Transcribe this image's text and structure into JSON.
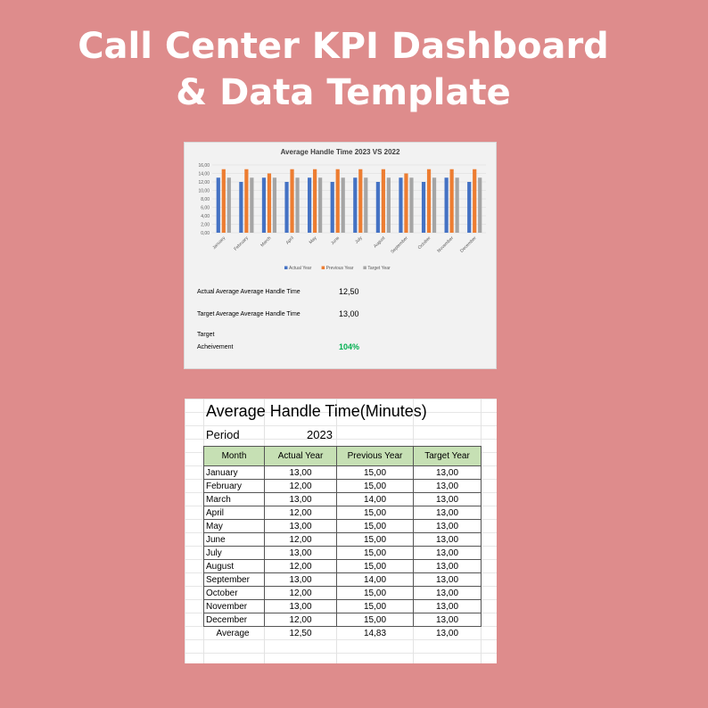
{
  "headline": {
    "line1": "Call Center KPI Dashboard",
    "line2": "& Data Template"
  },
  "chart_data": {
    "type": "bar",
    "title": "Average Handle Time 2023 VS 2022",
    "categories": [
      "January",
      "February",
      "March",
      "April",
      "May",
      "June",
      "July",
      "August",
      "September",
      "October",
      "November",
      "December"
    ],
    "series": [
      {
        "name": "Actual Year",
        "color": "#4472c4",
        "values": [
          13,
          12,
          13,
          12,
          13,
          12,
          13,
          12,
          13,
          12,
          13,
          12
        ]
      },
      {
        "name": "Previous Year",
        "color": "#ed7d31",
        "values": [
          15,
          15,
          14,
          15,
          15,
          15,
          15,
          15,
          14,
          15,
          15,
          15
        ]
      },
      {
        "name": "Target Year",
        "color": "#a5a5a5",
        "values": [
          13,
          13,
          13,
          13,
          13,
          13,
          13,
          13,
          13,
          13,
          13,
          13
        ]
      }
    ],
    "yticks": [
      "0,00",
      "2,00",
      "4,00",
      "6,00",
      "8,00",
      "10,00",
      "12,00",
      "14,00",
      "16,00"
    ],
    "ylim": [
      0,
      16
    ],
    "legend": "bottom"
  },
  "kpi": {
    "actual_label": "Actual Average Average Handle Time",
    "actual_value": "12,50",
    "target_label": "Target Average Average Handle Time",
    "target_value": "13,00",
    "achievement_label_1": "Target",
    "achievement_label_2": "Acheivement",
    "achievement_value": "104%",
    "achievement_color": "#00b050"
  },
  "sheet": {
    "title": "Average Handle Time(Minutes)",
    "period_label": "Period",
    "period_value": "2023",
    "header_color": "#c6e0b4",
    "columns": [
      "Month",
      "Actual Year",
      "Previous Year",
      "Target Year"
    ],
    "rows": [
      [
        "January",
        "13,00",
        "15,00",
        "13,00"
      ],
      [
        "February",
        "12,00",
        "15,00",
        "13,00"
      ],
      [
        "March",
        "13,00",
        "14,00",
        "13,00"
      ],
      [
        "April",
        "12,00",
        "15,00",
        "13,00"
      ],
      [
        "May",
        "13,00",
        "15,00",
        "13,00"
      ],
      [
        "June",
        "12,00",
        "15,00",
        "13,00"
      ],
      [
        "July",
        "13,00",
        "15,00",
        "13,00"
      ],
      [
        "August",
        "12,00",
        "15,00",
        "13,00"
      ],
      [
        "September",
        "13,00",
        "14,00",
        "13,00"
      ],
      [
        "October",
        "12,00",
        "15,00",
        "13,00"
      ],
      [
        "November",
        "13,00",
        "15,00",
        "13,00"
      ],
      [
        "December",
        "12,00",
        "15,00",
        "13,00"
      ]
    ],
    "average": [
      "Average",
      "12,50",
      "14,83",
      "13,00"
    ]
  }
}
